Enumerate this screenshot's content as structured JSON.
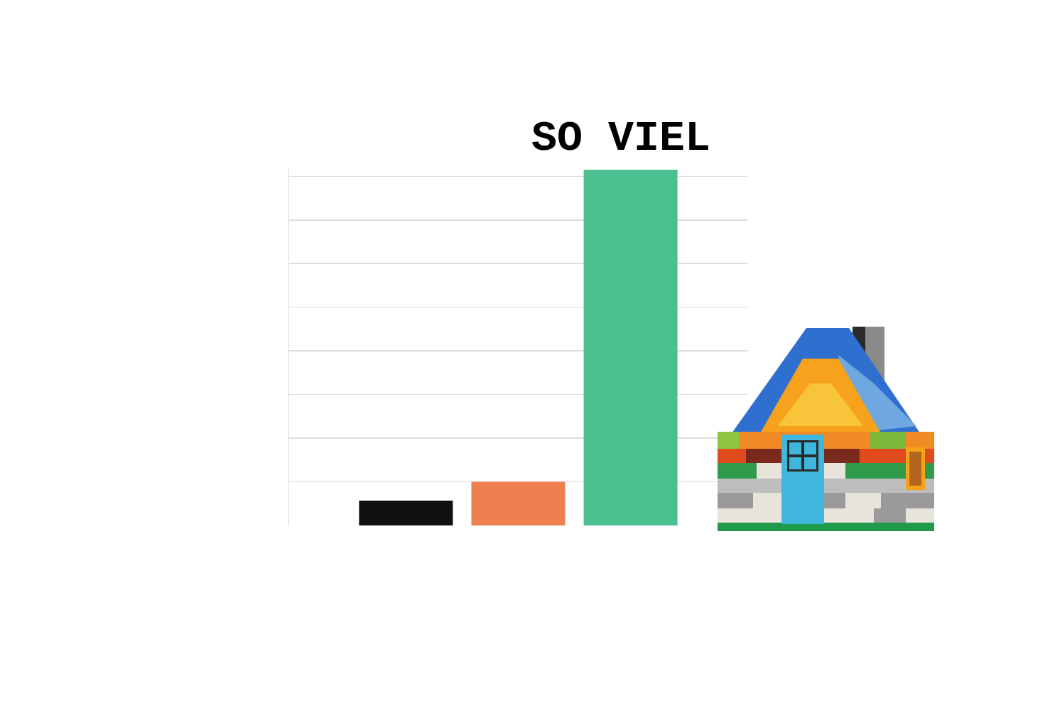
{
  "chart_data": {
    "type": "bar",
    "categories": [
      null,
      null,
      null
    ],
    "values": [
      0.57,
      1.0,
      8.15
    ],
    "colors": [
      "#111111",
      "#f07f50",
      "#4bbf8f"
    ],
    "ylim": [
      0,
      8.2
    ],
    "yticks": [
      0,
      1,
      2,
      3,
      4,
      5,
      6,
      7,
      8
    ],
    "grid": true,
    "tick_labels": false,
    "annotations": [
      {
        "text": "SO VIEL",
        "x": 2,
        "y": 8.15
      }
    ]
  }
}
